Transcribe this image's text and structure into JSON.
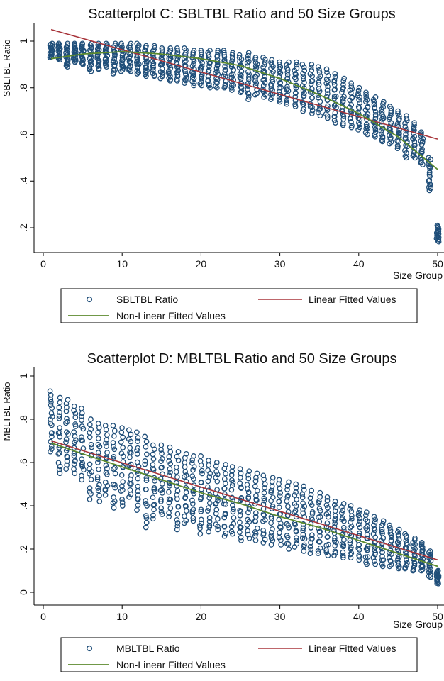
{
  "chart_data": [
    {
      "type": "scatter",
      "title": "Scatterplot C: SBLTBL Ratio and 50 Size Groups",
      "xlabel": "Size Group",
      "ylabel": "SBLTBL Ratio",
      "xlim": [
        0,
        50
      ],
      "ylim": [
        0.13,
        1.08
      ],
      "xticks": [
        0,
        10,
        20,
        30,
        40,
        50
      ],
      "yticks": [
        0.2,
        0.4,
        0.6,
        0.8,
        1
      ],
      "xtick_labels": [
        "0",
        "10",
        "20",
        "30",
        "40",
        "50"
      ],
      "ytick_labels": [
        ".2",
        ".4",
        ".6",
        ".8",
        "1"
      ],
      "grid": false,
      "legend_position": "bottom",
      "colors": {
        "marker": "#1f4e79",
        "linear": "#a8343a",
        "nonlinear": "#5b8a2d"
      },
      "series": [
        {
          "name": "SBLTBL Ratio",
          "kind": "scatter",
          "clusters": [
            {
              "x": 1,
              "lo": 0.93,
              "hi": 0.99
            },
            {
              "x": 2,
              "lo": 0.92,
              "hi": 0.99
            },
            {
              "x": 3,
              "lo": 0.89,
              "hi": 0.99
            },
            {
              "x": 4,
              "lo": 0.91,
              "hi": 0.99
            },
            {
              "x": 5,
              "lo": 0.9,
              "hi": 0.99
            },
            {
              "x": 6,
              "lo": 0.87,
              "hi": 0.99
            },
            {
              "x": 7,
              "lo": 0.88,
              "hi": 0.99
            },
            {
              "x": 8,
              "lo": 0.89,
              "hi": 0.99
            },
            {
              "x": 9,
              "lo": 0.86,
              "hi": 0.99
            },
            {
              "x": 10,
              "lo": 0.87,
              "hi": 0.99
            },
            {
              "x": 11,
              "lo": 0.87,
              "hi": 0.99
            },
            {
              "x": 12,
              "lo": 0.86,
              "hi": 0.99
            },
            {
              "x": 13,
              "lo": 0.85,
              "hi": 0.98
            },
            {
              "x": 14,
              "lo": 0.85,
              "hi": 0.98
            },
            {
              "x": 15,
              "lo": 0.84,
              "hi": 0.97
            },
            {
              "x": 16,
              "lo": 0.83,
              "hi": 0.97
            },
            {
              "x": 17,
              "lo": 0.83,
              "hi": 0.97
            },
            {
              "x": 18,
              "lo": 0.82,
              "hi": 0.97
            },
            {
              "x": 19,
              "lo": 0.81,
              "hi": 0.96
            },
            {
              "x": 20,
              "lo": 0.81,
              "hi": 0.96
            },
            {
              "x": 21,
              "lo": 0.8,
              "hi": 0.96
            },
            {
              "x": 22,
              "lo": 0.8,
              "hi": 0.96
            },
            {
              "x": 23,
              "lo": 0.8,
              "hi": 0.96
            },
            {
              "x": 24,
              "lo": 0.79,
              "hi": 0.95
            },
            {
              "x": 25,
              "lo": 0.78,
              "hi": 0.94
            },
            {
              "x": 26,
              "lo": 0.75,
              "hi": 0.95
            },
            {
              "x": 27,
              "lo": 0.77,
              "hi": 0.93
            },
            {
              "x": 28,
              "lo": 0.76,
              "hi": 0.93
            },
            {
              "x": 29,
              "lo": 0.75,
              "hi": 0.92
            },
            {
              "x": 30,
              "lo": 0.74,
              "hi": 0.91
            },
            {
              "x": 31,
              "lo": 0.73,
              "hi": 0.91
            },
            {
              "x": 32,
              "lo": 0.72,
              "hi": 0.91
            },
            {
              "x": 33,
              "lo": 0.7,
              "hi": 0.9
            },
            {
              "x": 34,
              "lo": 0.69,
              "hi": 0.9
            },
            {
              "x": 35,
              "lo": 0.68,
              "hi": 0.89
            },
            {
              "x": 36,
              "lo": 0.67,
              "hi": 0.88
            },
            {
              "x": 37,
              "lo": 0.65,
              "hi": 0.86
            },
            {
              "x": 38,
              "lo": 0.64,
              "hi": 0.84
            },
            {
              "x": 39,
              "lo": 0.63,
              "hi": 0.82
            },
            {
              "x": 40,
              "lo": 0.62,
              "hi": 0.8
            },
            {
              "x": 41,
              "lo": 0.6,
              "hi": 0.78
            },
            {
              "x": 42,
              "lo": 0.59,
              "hi": 0.76
            },
            {
              "x": 43,
              "lo": 0.57,
              "hi": 0.74
            },
            {
              "x": 44,
              "lo": 0.56,
              "hi": 0.72
            },
            {
              "x": 45,
              "lo": 0.54,
              "hi": 0.7
            },
            {
              "x": 46,
              "lo": 0.5,
              "hi": 0.68
            },
            {
              "x": 47,
              "lo": 0.5,
              "hi": 0.65
            },
            {
              "x": 48,
              "lo": 0.47,
              "hi": 0.61
            },
            {
              "x": 49,
              "lo": 0.36,
              "hi": 0.5
            },
            {
              "x": 50,
              "lo": 0.14,
              "hi": 0.21
            }
          ]
        },
        {
          "name": "Linear Fitted Values",
          "kind": "line",
          "x": [
            1,
            50
          ],
          "y": [
            1.05,
            0.58
          ]
        },
        {
          "name": "Non-Linear Fitted Values",
          "kind": "line",
          "x": [
            1,
            5,
            10,
            15,
            20,
            25,
            30,
            35,
            40,
            45,
            50
          ],
          "y": [
            0.925,
            0.945,
            0.955,
            0.945,
            0.925,
            0.895,
            0.84,
            0.77,
            0.69,
            0.59,
            0.45
          ]
        }
      ],
      "legend": [
        "SBLTBL Ratio",
        "Linear Fitted Values",
        "Non-Linear Fitted Values"
      ]
    },
    {
      "type": "scatter",
      "title": "Scatterplot D: MBLTBL Ratio and 50 Size Groups",
      "xlabel": "Size Group",
      "ylabel": "MBLTBL Ratio",
      "xlim": [
        0,
        50
      ],
      "ylim": [
        -0.03,
        1.03
      ],
      "xticks": [
        0,
        10,
        20,
        30,
        40,
        50
      ],
      "yticks": [
        0,
        0.2,
        0.4,
        0.6,
        0.8,
        1
      ],
      "xtick_labels": [
        "0",
        "10",
        "20",
        "30",
        "40",
        "50"
      ],
      "ytick_labels": [
        "0",
        ".2",
        ".4",
        ".6",
        ".8",
        "1"
      ],
      "grid": false,
      "legend_position": "bottom",
      "colors": {
        "marker": "#1f4e79",
        "linear": "#a8343a",
        "nonlinear": "#5b8a2d"
      },
      "series": [
        {
          "name": "MBLTBL Ratio",
          "kind": "scatter",
          "clusters": [
            {
              "x": 1,
              "lo": 0.65,
              "hi": 0.93
            },
            {
              "x": 2,
              "lo": 0.55,
              "hi": 0.9
            },
            {
              "x": 3,
              "lo": 0.57,
              "hi": 0.89
            },
            {
              "x": 4,
              "lo": 0.55,
              "hi": 0.86
            },
            {
              "x": 5,
              "lo": 0.52,
              "hi": 0.85
            },
            {
              "x": 6,
              "lo": 0.43,
              "hi": 0.8
            },
            {
              "x": 7,
              "lo": 0.42,
              "hi": 0.78
            },
            {
              "x": 8,
              "lo": 0.45,
              "hi": 0.77
            },
            {
              "x": 9,
              "lo": 0.39,
              "hi": 0.77
            },
            {
              "x": 10,
              "lo": 0.4,
              "hi": 0.76
            },
            {
              "x": 11,
              "lo": 0.44,
              "hi": 0.75
            },
            {
              "x": 12,
              "lo": 0.38,
              "hi": 0.74
            },
            {
              "x": 13,
              "lo": 0.3,
              "hi": 0.72
            },
            {
              "x": 14,
              "lo": 0.34,
              "hi": 0.68
            },
            {
              "x": 15,
              "lo": 0.36,
              "hi": 0.68
            },
            {
              "x": 16,
              "lo": 0.35,
              "hi": 0.67
            },
            {
              "x": 17,
              "lo": 0.29,
              "hi": 0.65
            },
            {
              "x": 18,
              "lo": 0.32,
              "hi": 0.64
            },
            {
              "x": 19,
              "lo": 0.33,
              "hi": 0.63
            },
            {
              "x": 20,
              "lo": 0.27,
              "hi": 0.63
            },
            {
              "x": 21,
              "lo": 0.28,
              "hi": 0.61
            },
            {
              "x": 22,
              "lo": 0.29,
              "hi": 0.6
            },
            {
              "x": 23,
              "lo": 0.26,
              "hi": 0.59
            },
            {
              "x": 24,
              "lo": 0.27,
              "hi": 0.58
            },
            {
              "x": 25,
              "lo": 0.24,
              "hi": 0.57
            },
            {
              "x": 26,
              "lo": 0.25,
              "hi": 0.56
            },
            {
              "x": 27,
              "lo": 0.24,
              "hi": 0.55
            },
            {
              "x": 28,
              "lo": 0.23,
              "hi": 0.54
            },
            {
              "x": 29,
              "lo": 0.22,
              "hi": 0.53
            },
            {
              "x": 30,
              "lo": 0.22,
              "hi": 0.52
            },
            {
              "x": 31,
              "lo": 0.2,
              "hi": 0.51
            },
            {
              "x": 32,
              "lo": 0.21,
              "hi": 0.5
            },
            {
              "x": 33,
              "lo": 0.19,
              "hi": 0.49
            },
            {
              "x": 34,
              "lo": 0.18,
              "hi": 0.47
            },
            {
              "x": 35,
              "lo": 0.18,
              "hi": 0.46
            },
            {
              "x": 36,
              "lo": 0.17,
              "hi": 0.44
            },
            {
              "x": 37,
              "lo": 0.17,
              "hi": 0.42
            },
            {
              "x": 38,
              "lo": 0.16,
              "hi": 0.41
            },
            {
              "x": 39,
              "lo": 0.16,
              "hi": 0.4
            },
            {
              "x": 40,
              "lo": 0.15,
              "hi": 0.38
            },
            {
              "x": 41,
              "lo": 0.13,
              "hi": 0.37
            },
            {
              "x": 42,
              "lo": 0.13,
              "hi": 0.35
            },
            {
              "x": 43,
              "lo": 0.12,
              "hi": 0.33
            },
            {
              "x": 44,
              "lo": 0.12,
              "hi": 0.31
            },
            {
              "x": 45,
              "lo": 0.11,
              "hi": 0.29
            },
            {
              "x": 46,
              "lo": 0.11,
              "hi": 0.27
            },
            {
              "x": 47,
              "lo": 0.1,
              "hi": 0.25
            },
            {
              "x": 48,
              "lo": 0.1,
              "hi": 0.23
            },
            {
              "x": 49,
              "lo": 0.07,
              "hi": 0.19
            },
            {
              "x": 50,
              "lo": 0.04,
              "hi": 0.1
            }
          ]
        },
        {
          "name": "Linear Fitted Values",
          "kind": "line",
          "x": [
            1,
            50
          ],
          "y": [
            0.7,
            0.15
          ]
        },
        {
          "name": "Non-Linear Fitted Values",
          "kind": "line",
          "x": [
            1,
            5,
            10,
            15,
            20,
            25,
            30,
            35,
            40,
            45,
            50
          ],
          "y": [
            0.69,
            0.64,
            0.58,
            0.52,
            0.46,
            0.41,
            0.35,
            0.3,
            0.24,
            0.18,
            0.12
          ]
        }
      ],
      "legend": [
        "MBLTBL Ratio",
        "Linear Fitted Values",
        "Non-Linear Fitted Values"
      ]
    }
  ]
}
